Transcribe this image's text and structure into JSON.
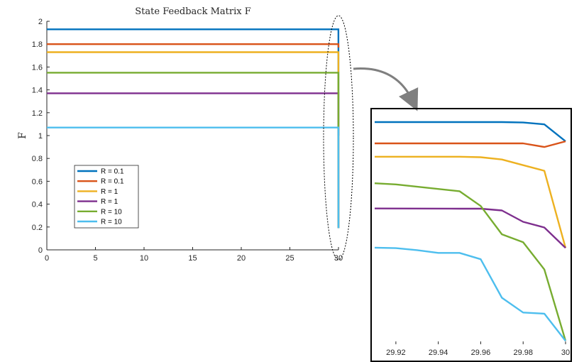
{
  "chart_data": [
    {
      "type": "line",
      "title": "State Feedback Matrix F",
      "xlabel": "",
      "ylabel": "F",
      "xlim": [
        0,
        30
      ],
      "ylim": [
        0,
        2
      ],
      "xticks": [
        0,
        5,
        10,
        15,
        20,
        25,
        30
      ],
      "yticks": [
        0,
        0.2,
        0.4,
        0.6,
        0.8,
        1,
        1.2,
        1.4,
        1.6,
        1.8,
        2
      ],
      "grid": false,
      "legend_position": "left",
      "series": [
        {
          "name": "R = 0.1",
          "color": "#0072BD",
          "x": [
            0,
            29.99,
            30
          ],
          "y": [
            1.93,
            1.93,
            1.0
          ]
        },
        {
          "name": "R = 0.1",
          "color": "#D95319",
          "x": [
            0,
            29.99,
            30
          ],
          "y": [
            1.8,
            1.8,
            1.77
          ]
        },
        {
          "name": "R = 1",
          "color": "#EDB120",
          "x": [
            0,
            29.99,
            30
          ],
          "y": [
            1.73,
            1.73,
            0.19
          ]
        },
        {
          "name": "R = 1",
          "color": "#7E2F8E",
          "x": [
            0,
            29.99,
            30
          ],
          "y": [
            1.37,
            1.37,
            0.19
          ]
        },
        {
          "name": "R = 10",
          "color": "#77AC30",
          "x": [
            0,
            29.99,
            30
          ],
          "y": [
            1.55,
            1.55,
            0.19
          ]
        },
        {
          "name": "R = 10",
          "color": "#4DBEEE",
          "x": [
            0,
            29.99,
            30
          ],
          "y": [
            1.07,
            1.07,
            0.19
          ]
        }
      ]
    },
    {
      "type": "line",
      "title": "",
      "xlim": [
        29.91,
        30
      ],
      "xticks": [
        29.92,
        29.94,
        29.96,
        29.98,
        30
      ],
      "xtick_labels": [
        "29.92",
        "29.94",
        "29.96",
        "29.98",
        "30"
      ],
      "series": [
        {
          "color": "#0072BD",
          "x": [
            29.91,
            29.97,
            29.98,
            29.99,
            30
          ],
          "y": [
            0.96,
            0.96,
            0.958,
            0.95,
            0.875
          ]
        },
        {
          "color": "#D95319",
          "x": [
            29.91,
            29.98,
            29.99,
            30
          ],
          "y": [
            0.866,
            0.866,
            0.85,
            0.875
          ]
        },
        {
          "color": "#EDB120",
          "x": [
            29.91,
            29.95,
            29.96,
            29.97,
            29.98,
            29.99,
            30
          ],
          "y": [
            0.807,
            0.807,
            0.805,
            0.795,
            0.77,
            0.745,
            0.405
          ]
        },
        {
          "color": "#7E2F8E",
          "x": [
            29.91,
            29.95,
            29.96,
            29.97,
            29.98,
            29.99,
            30
          ],
          "y": [
            0.579,
            0.578,
            0.578,
            0.57,
            0.52,
            0.495,
            0.405
          ]
        },
        {
          "color": "#77AC30",
          "x": [
            29.91,
            29.92,
            29.95,
            29.96,
            29.97,
            29.98,
            29.99,
            30
          ],
          "y": [
            0.69,
            0.685,
            0.655,
            0.59,
            0.465,
            0.43,
            0.31,
            -0.005
          ]
        },
        {
          "color": "#4DBEEE",
          "x": [
            29.91,
            29.92,
            29.93,
            29.94,
            29.95,
            29.96,
            29.97,
            29.98,
            29.99,
            30
          ],
          "y": [
            0.406,
            0.404,
            0.395,
            0.383,
            0.383,
            0.355,
            0.185,
            0.12,
            0.115,
            -0.005
          ]
        }
      ]
    }
  ],
  "legend_entries": [
    "R = 0.1",
    "R = 0.1",
    "R = 1",
    "R = 1",
    "R = 10",
    "R = 10"
  ]
}
